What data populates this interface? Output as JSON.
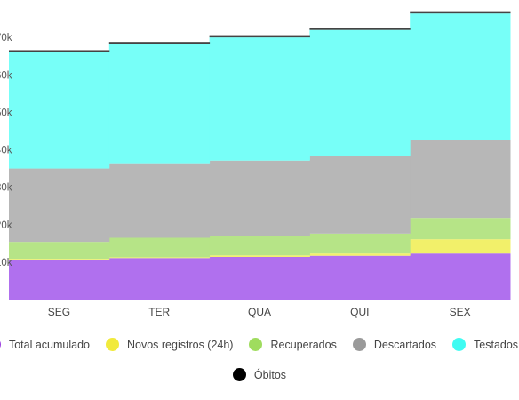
{
  "chart_data": {
    "type": "area",
    "stacked": true,
    "categories": [
      "SEG",
      "TER",
      "QUA",
      "QUI",
      "SEX"
    ],
    "ytick_suffix": "k",
    "series": [
      {
        "name": "Total acumulado",
        "color": "#b070ee",
        "values": [
          10.7,
          11.1,
          11.4,
          11.7,
          12.3
        ]
      },
      {
        "name": "Novos registros (24h)",
        "color": "#f2f06a",
        "values": [
          0.2,
          0.2,
          0.4,
          0.6,
          3.8
        ]
      },
      {
        "name": "Recuperados",
        "color": "#b6e487",
        "values": [
          4.5,
          5.2,
          5.1,
          5.3,
          5.7
        ]
      },
      {
        "name": "Descartados",
        "color": "#b7b7b7",
        "values": [
          19.6,
          19.9,
          20.2,
          20.7,
          20.7
        ]
      },
      {
        "name": "Testados",
        "color": "#77fff8",
        "values": [
          31.0,
          31.8,
          32.9,
          33.7,
          33.9
        ]
      },
      {
        "name": "Óbitos",
        "color": "#444444",
        "values": [
          0.6,
          0.6,
          0.6,
          0.6,
          0.6
        ]
      }
    ],
    "legend_colors": [
      "#9b3fe0",
      "#f1ea3c",
      "#9fdc5e",
      "#9a9a9a",
      "#3ffbf2",
      "#000000"
    ],
    "ylim": [
      0,
      80
    ],
    "grid": false,
    "legend_position": "bottom"
  }
}
